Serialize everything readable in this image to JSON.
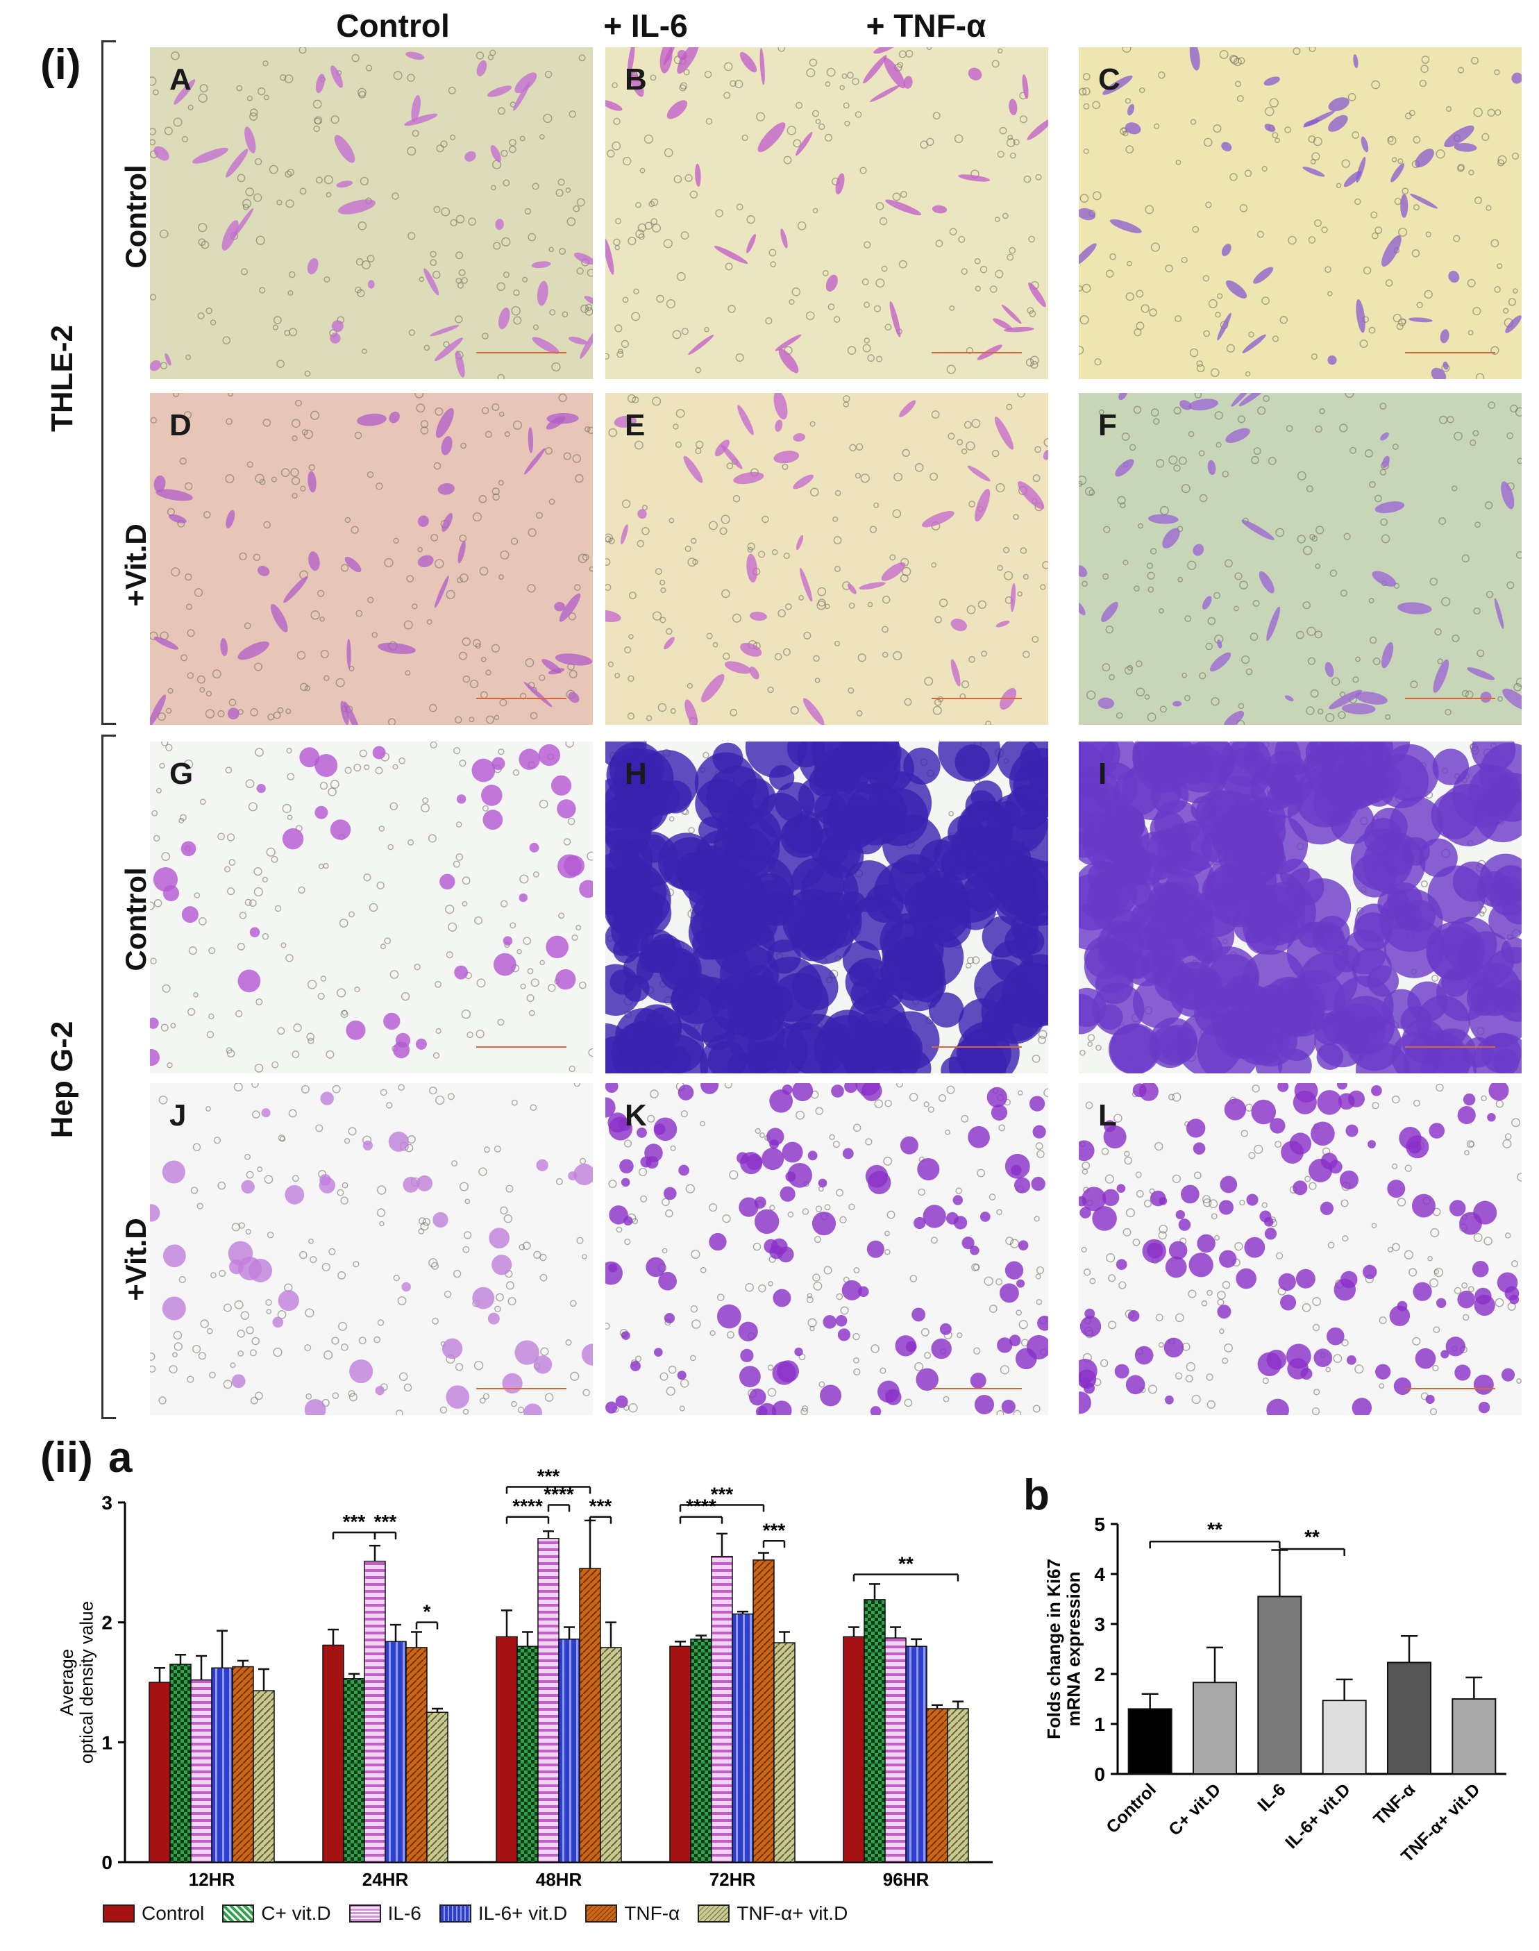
{
  "columns": [
    "Control",
    "+ IL-6",
    "+ TNF-α"
  ],
  "section_i": "(i)",
  "section_ii": "(ii)",
  "groups": [
    {
      "name": "THLE-2",
      "rows": [
        "Control",
        "+Vit.D"
      ]
    },
    {
      "name": "Hep  G-2",
      "rows": [
        "Control",
        "+Vit.D"
      ]
    }
  ],
  "panel_letters": [
    "A",
    "B",
    "C",
    "D",
    "E",
    "F",
    "G",
    "H",
    "I",
    "J",
    "K",
    "L"
  ],
  "chart_data": [
    {
      "panel": "a",
      "type": "bar",
      "ylabel": "Average\noptical density value",
      "ylim": [
        0,
        3
      ],
      "yticks": [
        "0",
        "1",
        "2",
        "3"
      ],
      "categories": [
        "12HR",
        "24HR",
        "48HR",
        "72HR",
        "96HR"
      ],
      "series": [
        {
          "name": "Control",
          "values": [
            1.5,
            1.81,
            1.88,
            1.8,
            1.88
          ],
          "errors": [
            0.12,
            0.13,
            0.22,
            0.04,
            0.08
          ]
        },
        {
          "name": "C+ vit.D",
          "values": [
            1.65,
            1.53,
            1.8,
            1.86,
            2.19
          ],
          "errors": [
            0.08,
            0.04,
            0.12,
            0.03,
            0.13
          ]
        },
        {
          "name": "IL-6",
          "values": [
            1.52,
            2.51,
            2.7,
            2.55,
            1.87
          ],
          "errors": [
            0.2,
            0.13,
            0.06,
            0.19,
            0.09
          ]
        },
        {
          "name": "IL-6+ vit.D",
          "values": [
            1.62,
            1.84,
            1.86,
            2.07,
            1.8
          ],
          "errors": [
            0.31,
            0.14,
            0.1,
            0.02,
            0.06
          ]
        },
        {
          "name": "TNF-α",
          "values": [
            1.63,
            1.79,
            2.45,
            2.52,
            1.28
          ],
          "errors": [
            0.05,
            0.13,
            0.4,
            0.06,
            0.03
          ]
        },
        {
          "name": "TNF-α+ vit.D",
          "values": [
            1.43,
            1.25,
            1.79,
            1.83,
            1.28
          ],
          "errors": [
            0.18,
            0.03,
            0.21,
            0.09,
            0.06
          ]
        }
      ],
      "colors": [
        "#a51212",
        "#2ea34a",
        "#dc8ee0",
        "#2d3fcc",
        "#cc6616",
        "#c9c98f"
      ],
      "significance": [
        "***",
        "***",
        "*",
        "***",
        "****",
        "****",
        "***",
        "***",
        "****",
        "***",
        "**"
      ]
    },
    {
      "panel": "b",
      "type": "bar",
      "ylabel": "Folds change in Ki67\nmRNA expression",
      "ylim": [
        0,
        5
      ],
      "yticks": [
        "0",
        "1",
        "2",
        "3",
        "4",
        "5"
      ],
      "categories": [
        "Control",
        "C+ vit.D",
        "IL-6",
        "IL-6+ vit.D",
        "TNF-α",
        "TNF-α+ vit.D"
      ],
      "values": [
        1.3,
        1.83,
        3.55,
        1.47,
        2.23,
        1.5
      ],
      "errors": [
        0.3,
        0.7,
        0.93,
        0.42,
        0.53,
        0.43
      ],
      "colors": [
        "#000000",
        "#a8a8a8",
        "#7b7b7b",
        "#dedede",
        "#555555",
        "#a8a8a8"
      ],
      "significance": [
        "**",
        "**"
      ]
    }
  ],
  "legend": [
    "Control",
    "C+ vit.D",
    "IL-6",
    "IL-6+ vit.D",
    "TNF-α",
    "TNF-α+ vit.D"
  ]
}
